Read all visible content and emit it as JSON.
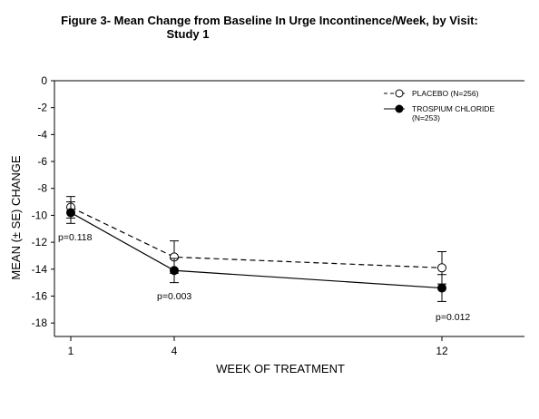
{
  "title_line1": "Figure 3- Mean Change from Baseline In Urge Incontinence/Week, by Visit:",
  "title_line2": "Study 1",
  "chart_data": {
    "type": "line",
    "title": "Figure 3- Mean Change from Baseline In Urge Incontinence/Week, by Visit: Study 1",
    "xlabel": "WEEK OF TREATMENT",
    "ylabel": "MEAN (± SE) CHANGE",
    "x": [
      1,
      4,
      12
    ],
    "x_tick_labels": [
      "1",
      "4",
      "12"
    ],
    "ylim": [
      -19,
      0
    ],
    "y_ticks": [
      0,
      -2,
      -4,
      -6,
      -8,
      -10,
      -12,
      -14,
      -16,
      -18
    ],
    "y_tick_labels": [
      "0",
      "-2",
      "-4",
      "-6",
      "-8",
      "-10",
      "-12",
      "-14",
      "-16",
      "-18"
    ],
    "grid": false,
    "legend_position": "top-right",
    "series": [
      {
        "name": "PLACEBO (N=256)",
        "legend_lines": [
          "PLACEBO (N=256)"
        ],
        "marker": "open-circle",
        "line_style": "dashed",
        "values": [
          -9.4,
          -13.1,
          -13.9
        ],
        "error": [
          0.8,
          1.2,
          1.2
        ]
      },
      {
        "name": "TROSPIUM CHLORIDE (N=253)",
        "legend_lines": [
          "TROSPIUM CHLORIDE",
          "(N=253)"
        ],
        "marker": "filled-circle",
        "line_style": "solid",
        "values": [
          -9.8,
          -14.1,
          -15.4
        ],
        "error": [
          0.8,
          0.9,
          1.0
        ]
      }
    ],
    "annotations": [
      "p=0.118",
      "p=0.003",
      "p=0.012"
    ]
  }
}
